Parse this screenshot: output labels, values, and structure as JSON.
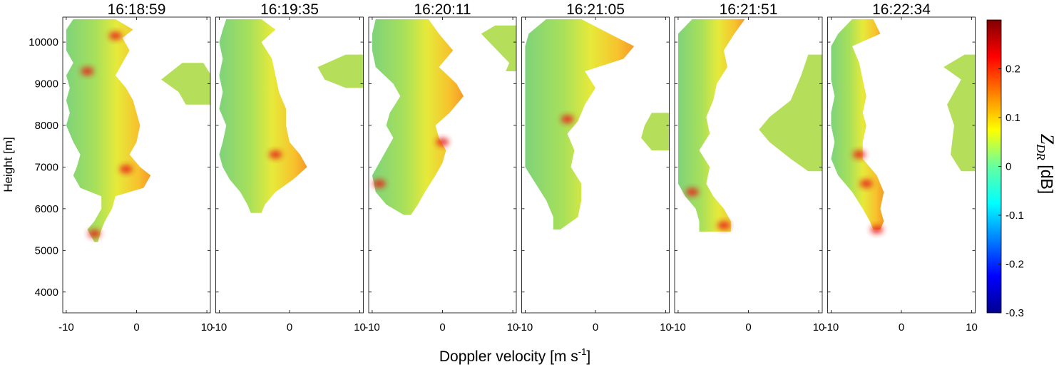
{
  "chart_data": {
    "type": "heatmap",
    "panels": [
      {
        "title": "16:18:59",
        "profile": [
          [
            5200,
            -6,
            -5.5
          ],
          [
            5500,
            -7,
            -5
          ],
          [
            5700,
            -6,
            -4.5
          ],
          [
            6000,
            -5,
            -3.5
          ],
          [
            6300,
            -5,
            -3
          ],
          [
            6500,
            -8,
            1
          ],
          [
            6800,
            -9,
            2
          ],
          [
            7000,
            -8.5,
            0.5
          ],
          [
            7300,
            -8,
            -1
          ],
          [
            7600,
            -9,
            0
          ],
          [
            8000,
            -10,
            0.5
          ],
          [
            8300,
            -9.5,
            0
          ],
          [
            8600,
            -10,
            -0.5
          ],
          [
            8900,
            -9.5,
            -1.5
          ],
          [
            9200,
            -10,
            -3
          ],
          [
            9500,
            -9,
            -2
          ],
          [
            9800,
            -10,
            -1
          ],
          [
            10100,
            -10,
            -2
          ],
          [
            10300,
            -10,
            -0.5
          ],
          [
            10550,
            -9,
            -3
          ]
        ],
        "hotspots": [
          [
            -1.5,
            6950
          ],
          [
            -3,
            10150
          ],
          [
            -7,
            9300
          ],
          [
            -6,
            5400
          ]
        ],
        "side": [
          [
            9500,
            6.5,
            8.5
          ],
          [
            9100,
            3.5,
            10
          ],
          [
            8800,
            6,
            10
          ],
          [
            8500,
            7,
            10
          ]
        ]
      },
      {
        "title": "16:19:35",
        "profile": [
          [
            5900,
            -5.5,
            -4
          ],
          [
            6100,
            -6,
            -3.5
          ],
          [
            6400,
            -7,
            -2
          ],
          [
            6700,
            -8.5,
            0.5
          ],
          [
            7000,
            -9.5,
            2.5
          ],
          [
            7300,
            -10,
            1.5
          ],
          [
            7600,
            -9.5,
            0
          ],
          [
            8000,
            -9,
            -0.5
          ],
          [
            8400,
            -10,
            -0.5
          ],
          [
            8800,
            -9.5,
            -1.5
          ],
          [
            9200,
            -10,
            -2
          ],
          [
            9600,
            -9.5,
            -2.5
          ],
          [
            10000,
            -10,
            -4
          ],
          [
            10300,
            -9.5,
            -2
          ],
          [
            10550,
            -9,
            -4
          ]
        ],
        "hotspots": [
          [
            -2,
            7300
          ]
        ],
        "side": [
          [
            9700,
            8,
            10
          ],
          [
            9400,
            4,
            10
          ],
          [
            9100,
            5,
            10
          ],
          [
            8900,
            8,
            10
          ]
        ]
      },
      {
        "title": "16:20:11",
        "profile": [
          [
            5850,
            -5.5,
            -4.5
          ],
          [
            6100,
            -8,
            -3.5
          ],
          [
            6400,
            -9.5,
            -2.5
          ],
          [
            6800,
            -10,
            -1
          ],
          [
            7100,
            -9,
            0
          ],
          [
            7400,
            -8,
            0.5
          ],
          [
            7700,
            -7,
            -0.5
          ],
          [
            8000,
            -8,
            -1
          ],
          [
            8300,
            -7.5,
            1
          ],
          [
            8700,
            -6,
            3
          ],
          [
            9000,
            -7,
            2
          ],
          [
            9400,
            -9.5,
            -0.5
          ],
          [
            9800,
            -10,
            1.5
          ],
          [
            10200,
            -10,
            -0.5
          ],
          [
            10550,
            -9.5,
            -2
          ]
        ],
        "hotspots": [
          [
            0,
            7600
          ],
          [
            -9,
            6600
          ]
        ],
        "side": [
          [
            10400,
            7.5,
            10
          ],
          [
            10200,
            5.5,
            10
          ],
          [
            9500,
            9.5,
            10
          ],
          [
            9300,
            9,
            10
          ]
        ]
      },
      {
        "title": "16:21:05",
        "profile": [
          [
            5500,
            -6,
            -5
          ],
          [
            5800,
            -6,
            -2.5
          ],
          [
            6200,
            -7,
            -2
          ],
          [
            6600,
            -8.5,
            -2
          ],
          [
            7000,
            -10,
            -3.5
          ],
          [
            7400,
            -10,
            -3
          ],
          [
            7800,
            -10,
            -4
          ],
          [
            8100,
            -10,
            -2.5
          ],
          [
            8500,
            -10,
            -1.5
          ],
          [
            8900,
            -10,
            0
          ],
          [
            9300,
            -10,
            -1.5
          ],
          [
            9600,
            -10,
            4
          ],
          [
            9900,
            -10,
            5.5
          ],
          [
            10200,
            -9.5,
            2
          ],
          [
            10550,
            -7,
            -2
          ]
        ],
        "hotspots": [
          [
            -4,
            8150
          ]
        ],
        "side": [
          [
            8300,
            8,
            10
          ],
          [
            8000,
            7,
            10
          ],
          [
            7700,
            6.5,
            10
          ],
          [
            7400,
            8,
            10
          ]
        ]
      },
      {
        "title": "16:21:51",
        "profile": [
          [
            5450,
            -7,
            -2.5
          ],
          [
            5700,
            -7,
            -2.5
          ],
          [
            6000,
            -7.5,
            -3.5
          ],
          [
            6300,
            -9,
            -5
          ],
          [
            6600,
            -10,
            -6
          ],
          [
            7000,
            -10,
            -5.5
          ],
          [
            7400,
            -10,
            -7
          ],
          [
            7800,
            -10,
            -5.5
          ],
          [
            8200,
            -10,
            -6
          ],
          [
            8600,
            -10,
            -5
          ],
          [
            9000,
            -10,
            -4.5
          ],
          [
            9400,
            -10,
            -3
          ],
          [
            9800,
            -10,
            -3.5
          ],
          [
            10200,
            -10,
            -2
          ],
          [
            10550,
            -8,
            -0.5
          ]
        ],
        "hotspots": [
          [
            -8,
            6400
          ],
          [
            -3.5,
            5600
          ]
        ],
        "side": [
          [
            9700,
            8.5,
            10
          ],
          [
            9200,
            7.5,
            10
          ],
          [
            8600,
            6,
            10
          ],
          [
            8200,
            3,
            10
          ],
          [
            7900,
            1.5,
            10
          ],
          [
            7600,
            3,
            10
          ],
          [
            7200,
            6,
            10
          ],
          [
            6900,
            8.5,
            10
          ]
        ]
      },
      {
        "title": "16:22:34",
        "profile": [
          [
            5500,
            -4,
            -3
          ],
          [
            5700,
            -4.5,
            -2.5
          ],
          [
            6000,
            -5.5,
            -3
          ],
          [
            6400,
            -7,
            -2.5
          ],
          [
            6800,
            -9,
            -3.5
          ],
          [
            7200,
            -10,
            -5.5
          ],
          [
            7600,
            -9.5,
            -5.5
          ],
          [
            8000,
            -10,
            -5
          ],
          [
            8300,
            -10,
            -5.5
          ],
          [
            8700,
            -9.5,
            -5
          ],
          [
            9100,
            -10,
            -5.5
          ],
          [
            9500,
            -10,
            -6
          ],
          [
            9900,
            -10,
            -7
          ],
          [
            10200,
            -9,
            -3
          ],
          [
            10550,
            -7,
            -4
          ]
        ],
        "hotspots": [
          [
            -6,
            7300
          ],
          [
            -5,
            6600
          ],
          [
            -3.5,
            5500
          ]
        ],
        "side": [
          [
            9700,
            9,
            10
          ],
          [
            9400,
            6,
            10
          ],
          [
            9100,
            8.5,
            10
          ],
          [
            8500,
            6.5,
            10
          ],
          [
            8000,
            7.5,
            10
          ],
          [
            7300,
            7,
            10
          ],
          [
            6900,
            8.5,
            10
          ]
        ]
      }
    ],
    "xlabel": "Doppler velocity [m s",
    "xlabel_sup": "-1",
    "xlabel_close": "]",
    "ylabel": "Height [m]",
    "xlim": [
      -10.5,
      10.5
    ],
    "ylim": [
      3500,
      10600
    ],
    "xticks": [
      -10,
      0,
      10
    ],
    "yticks": [
      4000,
      5000,
      6000,
      7000,
      8000,
      9000,
      10000
    ],
    "colorbar": {
      "label": "Z",
      "label_sub": "DR",
      "label_unit": " [dB]",
      "clim": [
        -0.3,
        0.3
      ],
      "ticks": [
        0.2,
        0.1,
        0,
        -0.1,
        -0.2,
        -0.3
      ],
      "tick_labels": [
        "0.2",
        "0.1",
        "0",
        "-0.1",
        "-0.2",
        "-0.3"
      ],
      "colormap": "jet"
    },
    "grid": false
  }
}
